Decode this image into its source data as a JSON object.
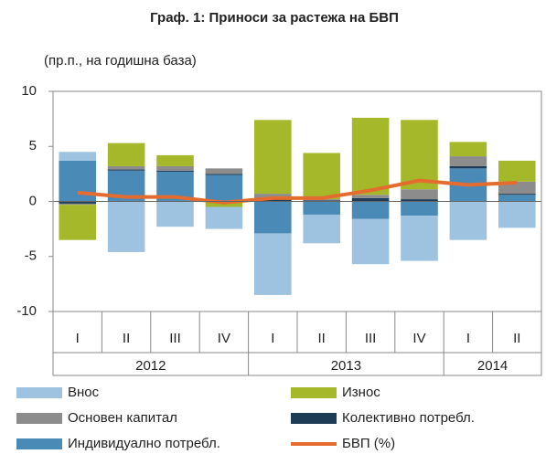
{
  "chart_data": {
    "type": "stacked_bar_line",
    "title": "Граф. 1: Приноси за растежа на БВП",
    "subtitle": "(пр.п., на годишна база)",
    "categories": [
      "I",
      "II",
      "III",
      "IV",
      "I",
      "II",
      "III",
      "IV",
      "I",
      "II"
    ],
    "x_groups": [
      {
        "label": "2012",
        "count": 4
      },
      {
        "label": "2013",
        "count": 4
      },
      {
        "label": "2014",
        "count": 2
      }
    ],
    "series": [
      {
        "name": "Внос",
        "color": "#9dc3e0",
        "type": "bar",
        "values": [
          0.8,
          -4.6,
          -2.3,
          -2.0,
          -5.6,
          -2.6,
          -4.1,
          -4.1,
          -3.5,
          -2.4
        ]
      },
      {
        "name": "Износ",
        "color": "#a5b82a",
        "type": "bar",
        "values": [
          -3.2,
          2.1,
          1.0,
          -0.5,
          6.7,
          4.2,
          7.0,
          6.3,
          1.3,
          1.9
        ]
      },
      {
        "name": "Основен капитал",
        "color": "#8c8c8c",
        "type": "bar",
        "values": [
          -0.1,
          0.3,
          0.4,
          0.5,
          0.5,
          0.1,
          0.3,
          0.9,
          0.9,
          1.1
        ]
      },
      {
        "name": "Колективно потребл.",
        "color": "#1f3c56",
        "type": "bar",
        "values": [
          -0.2,
          0.1,
          0.1,
          0.1,
          0.2,
          0.1,
          0.3,
          0.2,
          0.2,
          0.1
        ]
      },
      {
        "name": "Индивидуално потребл.",
        "color": "#4a8ab6",
        "type": "bar",
        "values": [
          3.7,
          2.8,
          2.7,
          2.4,
          -2.9,
          -1.2,
          -1.6,
          -1.3,
          3.0,
          0.6
        ]
      },
      {
        "name": "БВП (%)",
        "color": "#e36c2e",
        "type": "line",
        "values": [
          0.8,
          0.4,
          0.4,
          -0.1,
          0.3,
          0.3,
          1.0,
          1.9,
          1.5,
          1.7
        ]
      }
    ],
    "ylim": [
      -10,
      10
    ],
    "yticks": [
      -10,
      -5,
      0,
      5,
      10
    ]
  }
}
